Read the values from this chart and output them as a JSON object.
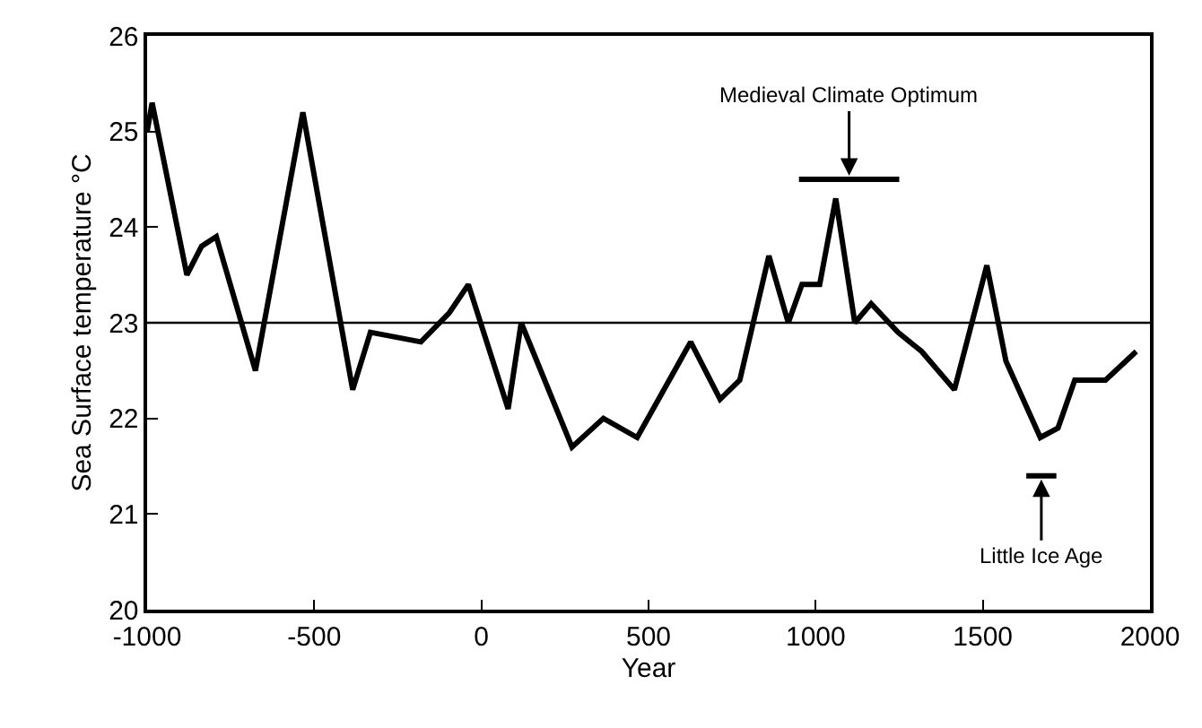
{
  "chart_data": {
    "type": "line",
    "xlabel": "Year",
    "ylabel": "Sea Surface temperature °C",
    "x": [
      -1000,
      -985,
      -881,
      -837,
      -793,
      -676,
      -534,
      -385,
      -332,
      -181,
      -97,
      -39,
      80,
      119,
      271,
      365,
      466,
      626,
      714,
      773,
      860,
      918,
      959,
      1012,
      1060,
      1117,
      1166,
      1246,
      1317,
      1415,
      1512,
      1569,
      1672,
      1725,
      1775,
      1867,
      1959
    ],
    "series": [
      {
        "color": "#000000",
        "values": [
          25.0,
          25.3,
          23.5,
          23.8,
          23.9,
          22.5,
          25.2,
          22.3,
          22.9,
          22.8,
          23.1,
          23.4,
          22.1,
          23.0,
          21.7,
          22.0,
          21.8,
          22.8,
          22.2,
          22.4,
          23.7,
          23.0,
          23.4,
          23.4,
          24.3,
          23.0,
          23.2,
          22.9,
          22.7,
          22.3,
          23.6,
          22.6,
          21.8,
          21.9,
          22.4,
          22.4,
          22.7
        ]
      },
      {
        "name": "Medieval Climate Optimum",
        "color": "#000000",
        "x": [
          950,
          1250
        ],
        "values": [
          24.5,
          24.5
        ]
      },
      {
        "name": "Little Ice Age",
        "color": "#000000",
        "x": [
          1630,
          1720
        ],
        "values": [
          21.4,
          21.4
        ]
      }
    ],
    "xlim": [
      -1000,
      2000
    ],
    "xticks": [
      -1000,
      -500,
      0,
      500,
      1000,
      1500,
      2000
    ],
    "ylim": [
      20,
      26
    ],
    "yticks": [
      20,
      21,
      22,
      23,
      24,
      25,
      26
    ],
    "ref_lines": [
      {
        "axis": "y",
        "value": 23,
        "color": "#000000"
      }
    ],
    "legend": false,
    "marker": "none",
    "line_style": "solid"
  }
}
